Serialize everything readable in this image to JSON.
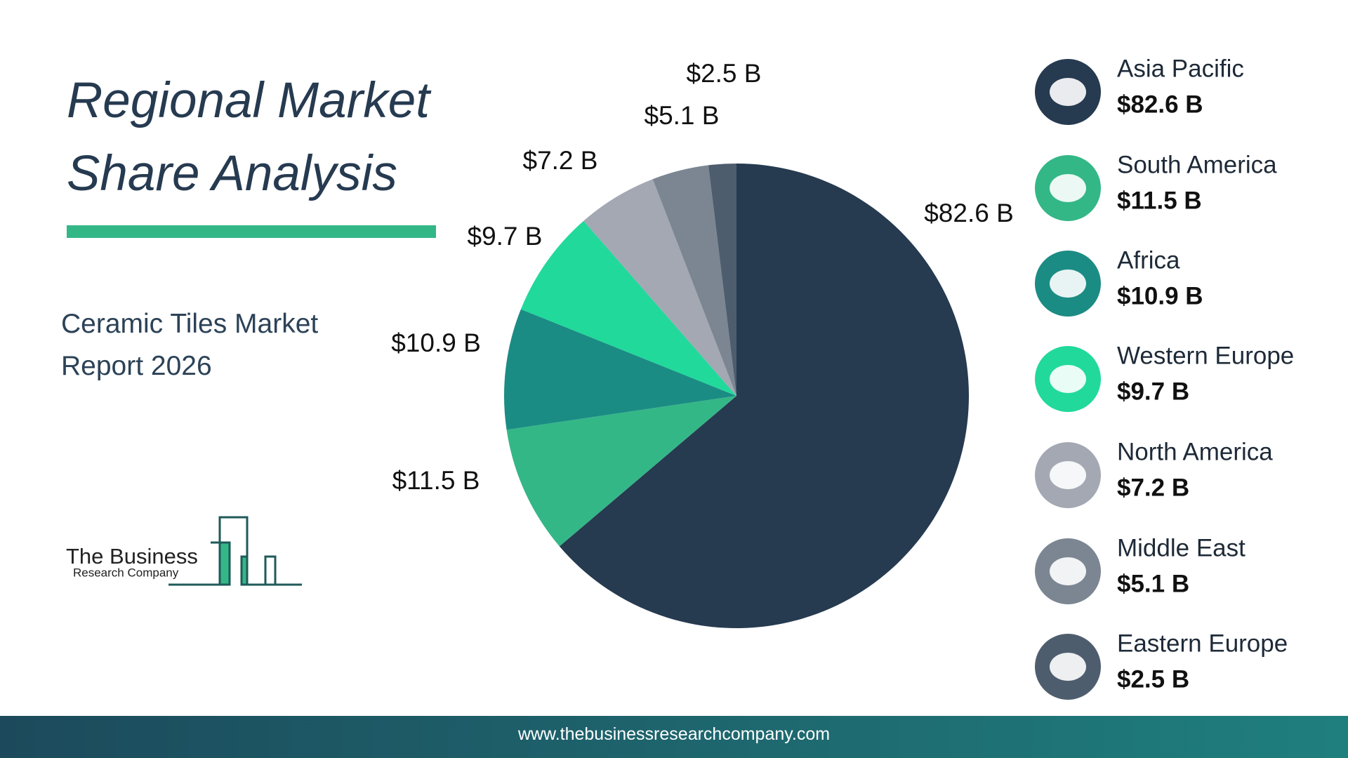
{
  "chart_data": {
    "type": "pie",
    "title": "Regional Market Share Analysis",
    "subtitle": "Ceramic Tiles Market Report 2026",
    "categories": [
      "Asia Pacific",
      "South America",
      "Africa",
      "Western Europe",
      "North America",
      "Middle East",
      "Eastern Europe"
    ],
    "values": [
      82.6,
      11.5,
      10.9,
      9.7,
      7.2,
      5.1,
      2.5
    ],
    "value_labels": [
      "$82.6 B",
      "$11.5 B",
      "$10.9 B",
      "$9.7 B",
      "$7.2 B",
      "$5.1 B",
      "$2.5 B"
    ],
    "colors": [
      "#263a50",
      "#34b787",
      "#1b8c84",
      "#21d99b",
      "#a3a8b3",
      "#7b8692",
      "#4e5d6e"
    ]
  },
  "logo": {
    "line1": "The Business",
    "line2": "Research Company"
  },
  "footer": {
    "url": "www.thebusinessresearchcompany.com"
  }
}
